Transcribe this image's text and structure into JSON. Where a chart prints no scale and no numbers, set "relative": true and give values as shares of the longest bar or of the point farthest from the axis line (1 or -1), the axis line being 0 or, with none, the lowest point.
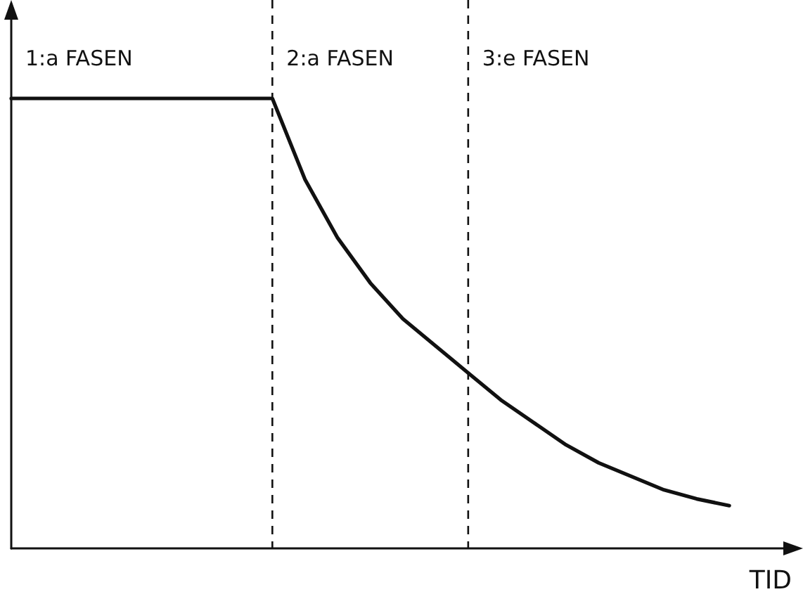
{
  "chart_data": {
    "type": "line",
    "relative": true,
    "xlabel": "TID",
    "categories": [
      null,
      null,
      null,
      null,
      null,
      null,
      null,
      null,
      null,
      null,
      null,
      null,
      null,
      null,
      null,
      null,
      null,
      null,
      null,
      null,
      null,
      null,
      null,
      null,
      null
    ],
    "series": [
      {
        "color": "#111111",
        "values": [
          1,
          1,
          1,
          1,
          1,
          1,
          1,
          1,
          1,
          0.82,
          0.69,
          0.59,
          0.51,
          0.45,
          0.39,
          0.33,
          0.28,
          0.23,
          0.19,
          0.16,
          0.13,
          0.11,
          0.095,
          null,
          null
        ]
      }
    ],
    "annotations": [
      "1:a FASEN",
      "2:a FASEN",
      "3:e FASEN"
    ],
    "marker": "none",
    "line_style": "solid"
  }
}
